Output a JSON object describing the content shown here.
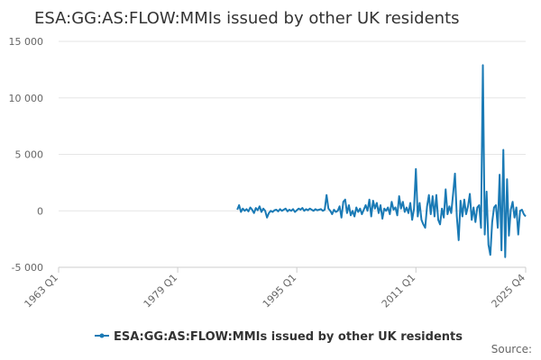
{
  "chart_data": {
    "type": "line",
    "title": "ESA:GG:AS:FLOW:MMIs issued by other UK residents",
    "source": "Source:",
    "xlim": [
      "1963 Q1",
      "2025 Q4"
    ],
    "xticks": [
      "1963 Q1",
      "1979 Q1",
      "1995 Q1",
      "2011 Q1",
      "2025 Q4"
    ],
    "ylim": [
      -5000,
      15000
    ],
    "yticks": [
      {
        "value": -5000,
        "label": "-5 000"
      },
      0,
      {
        "value": 5000,
        "label": "5 000"
      },
      {
        "value": 10000,
        "label": "10 000"
      },
      {
        "value": 15000,
        "label": "15 000"
      }
    ],
    "grid": true,
    "x": [
      "1987 Q1",
      "1987 Q2",
      "1987 Q3",
      "1987 Q4",
      "1988 Q1",
      "1988 Q2",
      "1988 Q3",
      "1988 Q4",
      "1989 Q1",
      "1989 Q2",
      "1989 Q3",
      "1989 Q4",
      "1990 Q1",
      "1990 Q2",
      "1990 Q3",
      "1990 Q4",
      "1991 Q1",
      "1991 Q2",
      "1991 Q3",
      "1991 Q4",
      "1992 Q1",
      "1992 Q2",
      "1992 Q3",
      "1992 Q4",
      "1993 Q1",
      "1993 Q2",
      "1993 Q3",
      "1993 Q4",
      "1994 Q1",
      "1994 Q2",
      "1994 Q3",
      "1994 Q4",
      "1995 Q1",
      "1995 Q2",
      "1995 Q3",
      "1995 Q4",
      "1996 Q1",
      "1996 Q2",
      "1996 Q3",
      "1996 Q4",
      "1997 Q1",
      "1997 Q2",
      "1997 Q3",
      "1997 Q4",
      "1998 Q1",
      "1998 Q2",
      "1998 Q3",
      "1998 Q4",
      "1999 Q1",
      "1999 Q2",
      "1999 Q3",
      "1999 Q4",
      "2000 Q1",
      "2000 Q2",
      "2000 Q3",
      "2000 Q4",
      "2001 Q1",
      "2001 Q2",
      "2001 Q3",
      "2001 Q4",
      "2002 Q1",
      "2002 Q2",
      "2002 Q3",
      "2002 Q4",
      "2003 Q1",
      "2003 Q2",
      "2003 Q3",
      "2003 Q4",
      "2004 Q1",
      "2004 Q2",
      "2004 Q3",
      "2004 Q4",
      "2005 Q1",
      "2005 Q2",
      "2005 Q3",
      "2005 Q4",
      "2006 Q1",
      "2006 Q2",
      "2006 Q3",
      "2006 Q4",
      "2007 Q1",
      "2007 Q2",
      "2007 Q3",
      "2007 Q4",
      "2008 Q1",
      "2008 Q2",
      "2008 Q3",
      "2008 Q4",
      "2009 Q1",
      "2009 Q2",
      "2009 Q3",
      "2009 Q4",
      "2010 Q1",
      "2010 Q2",
      "2010 Q3",
      "2010 Q4",
      "2011 Q1",
      "2011 Q2",
      "2011 Q3",
      "2011 Q4",
      "2012 Q1",
      "2012 Q2",
      "2012 Q3",
      "2012 Q4",
      "2013 Q1",
      "2013 Q2",
      "2013 Q3",
      "2013 Q4",
      "2014 Q1",
      "2014 Q2",
      "2014 Q3",
      "2014 Q4",
      "2015 Q1",
      "2015 Q2",
      "2015 Q3",
      "2015 Q4",
      "2016 Q1",
      "2016 Q2",
      "2016 Q3",
      "2016 Q4",
      "2017 Q1",
      "2017 Q2",
      "2017 Q3",
      "2017 Q4",
      "2018 Q1",
      "2018 Q2",
      "2018 Q3",
      "2018 Q4",
      "2019 Q1",
      "2019 Q2",
      "2019 Q3",
      "2019 Q4",
      "2020 Q1",
      "2020 Q2",
      "2020 Q3",
      "2020 Q4",
      "2021 Q1",
      "2021 Q2",
      "2021 Q3",
      "2021 Q4",
      "2022 Q1",
      "2022 Q2",
      "2022 Q3",
      "2022 Q4",
      "2023 Q1",
      "2023 Q2",
      "2023 Q3",
      "2023 Q4",
      "2024 Q1",
      "2024 Q2",
      "2024 Q3",
      "2024 Q4",
      "2025 Q1",
      "2025 Q2",
      "2025 Q3",
      "2025 Q4"
    ],
    "series": [
      {
        "name": "ESA:GG:AS:FLOW:MMIs issued by other UK residents",
        "color": "#1a7ab5",
        "values": [
          100,
          500,
          -100,
          200,
          0,
          150,
          -50,
          300,
          100,
          -200,
          250,
          50,
          400,
          -100,
          200,
          0,
          -600,
          -200,
          0,
          -100,
          50,
          100,
          -50,
          150,
          0,
          100,
          200,
          -50,
          100,
          0,
          150,
          -100,
          50,
          200,
          100,
          250,
          0,
          150,
          50,
          200,
          100,
          0,
          150,
          50,
          100,
          150,
          0,
          100,
          1400,
          200,
          0,
          -300,
          100,
          -100,
          0,
          400,
          -600,
          800,
          1000,
          -200,
          500,
          -400,
          0,
          -500,
          300,
          -100,
          200,
          -300,
          100,
          500,
          0,
          1000,
          -500,
          900,
          200,
          700,
          -200,
          500,
          -700,
          200,
          0,
          300,
          -300,
          800,
          100,
          300,
          -400,
          1300,
          200,
          800,
          -100,
          300,
          -200,
          700,
          -800,
          200,
          3700,
          -500,
          700,
          -800,
          -1200,
          -1500,
          400,
          1400,
          -300,
          1300,
          -500,
          1400,
          -800,
          -1200,
          200,
          -600,
          1900,
          -300,
          400,
          -200,
          1500,
          3300,
          -500,
          -2600,
          900,
          -500,
          1000,
          -300,
          400,
          1500,
          -800,
          300,
          -1000,
          300,
          500,
          -1500,
          12900,
          -2100,
          1700,
          -3000,
          -3900,
          -1000,
          300,
          500,
          -1500,
          3200,
          -3500,
          5400,
          -4100,
          2800,
          -2200,
          100,
          800,
          -600,
          300,
          -2100,
          0,
          100,
          -300,
          -500
        ]
      }
    ]
  }
}
